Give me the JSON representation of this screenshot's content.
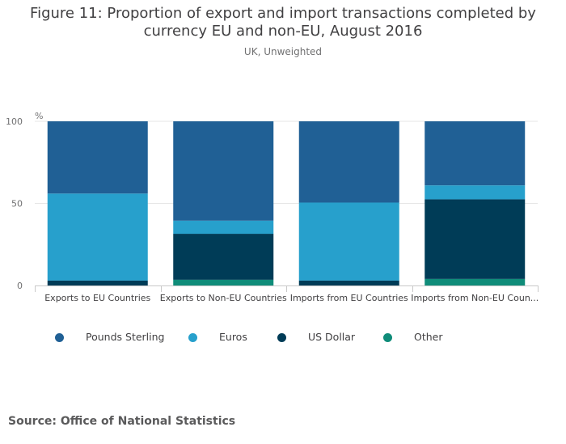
{
  "title_lines": [
    "Figure 11: Proportion of export and import transactions completed by",
    "currency EU and non-EU, August 2016"
  ],
  "subtitle": "UK, Unweighted",
  "source": "Source: Office of National Statistics",
  "chart_data": {
    "type": "bar",
    "stacked": true,
    "title": "Figure 11: Proportion of export and import transactions completed by currency EU and non-EU, August 2016",
    "subtitle": "UK, Unweighted",
    "ylabel": "%",
    "xlabel": "",
    "ylim": [
      0,
      100
    ],
    "yticks": [
      "0",
      "50",
      "100"
    ],
    "grid": true,
    "legend_position": "bottom",
    "categories": [
      "Exports to EU Countries",
      "Exports to Non-EU Countries",
      "Imports from EU Countries",
      "Imports from Non-EU Coun..."
    ],
    "series": [
      {
        "name": "Other",
        "color": "#0f8c79",
        "values": [
          0,
          3.5,
          0,
          4
        ]
      },
      {
        "name": "US Dollar",
        "color": "#003c57",
        "values": [
          3,
          28,
          3,
          48.5
        ]
      },
      {
        "name": "Euros",
        "color": "#27a0cc",
        "values": [
          53,
          8,
          47.5,
          8.5
        ]
      },
      {
        "name": "Pounds Sterling",
        "color": "#206095",
        "values": [
          44,
          60.5,
          49.5,
          39
        ]
      }
    ],
    "legend_order": [
      "Pounds Sterling",
      "Euros",
      "US Dollar",
      "Other"
    ]
  }
}
